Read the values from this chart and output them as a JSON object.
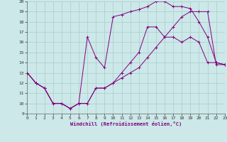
{
  "xlabel": "Windchill (Refroidissement éolien,°C)",
  "bg_color": "#cce8e8",
  "grid_color": "#aacccc",
  "line_color": "#800080",
  "xmin": 0,
  "xmax": 23,
  "ymin": 9,
  "ymax": 20,
  "curve1_x": [
    0,
    1,
    2,
    3,
    4,
    5,
    6,
    7,
    8,
    9,
    10,
    11,
    12,
    13,
    14,
    15,
    16,
    17,
    18,
    19,
    20,
    21,
    22,
    23
  ],
  "curve1_y": [
    13,
    12,
    11.5,
    10,
    10,
    9.5,
    10,
    16.5,
    14.5,
    13.5,
    18.5,
    18.7,
    19.0,
    19.2,
    19.5,
    20.0,
    20.0,
    19.5,
    19.5,
    19.3,
    18.0,
    16.5,
    14.0,
    13.8
  ],
  "curve2_x": [
    0,
    1,
    2,
    3,
    4,
    5,
    6,
    7,
    8,
    9,
    10,
    11,
    12,
    13,
    14,
    15,
    16,
    17,
    18,
    19,
    20,
    21,
    22,
    23
  ],
  "curve2_y": [
    13,
    12,
    11.5,
    10,
    10,
    9.5,
    10,
    10,
    11.5,
    11.5,
    12.0,
    13.0,
    14.0,
    15.0,
    17.5,
    17.5,
    16.5,
    16.5,
    16.0,
    16.5,
    16.0,
    14.0,
    14.0,
    13.8
  ],
  "curve3_x": [
    0,
    1,
    2,
    3,
    4,
    5,
    6,
    7,
    8,
    9,
    10,
    11,
    12,
    13,
    14,
    15,
    16,
    17,
    18,
    19,
    20,
    21,
    22,
    23
  ],
  "curve3_y": [
    13,
    12,
    11.5,
    10,
    10,
    9.5,
    10,
    10,
    11.5,
    11.5,
    12.0,
    12.5,
    13.0,
    13.5,
    14.5,
    15.5,
    16.5,
    17.5,
    18.5,
    19.0,
    19.0,
    19.0,
    13.8,
    13.8
  ]
}
